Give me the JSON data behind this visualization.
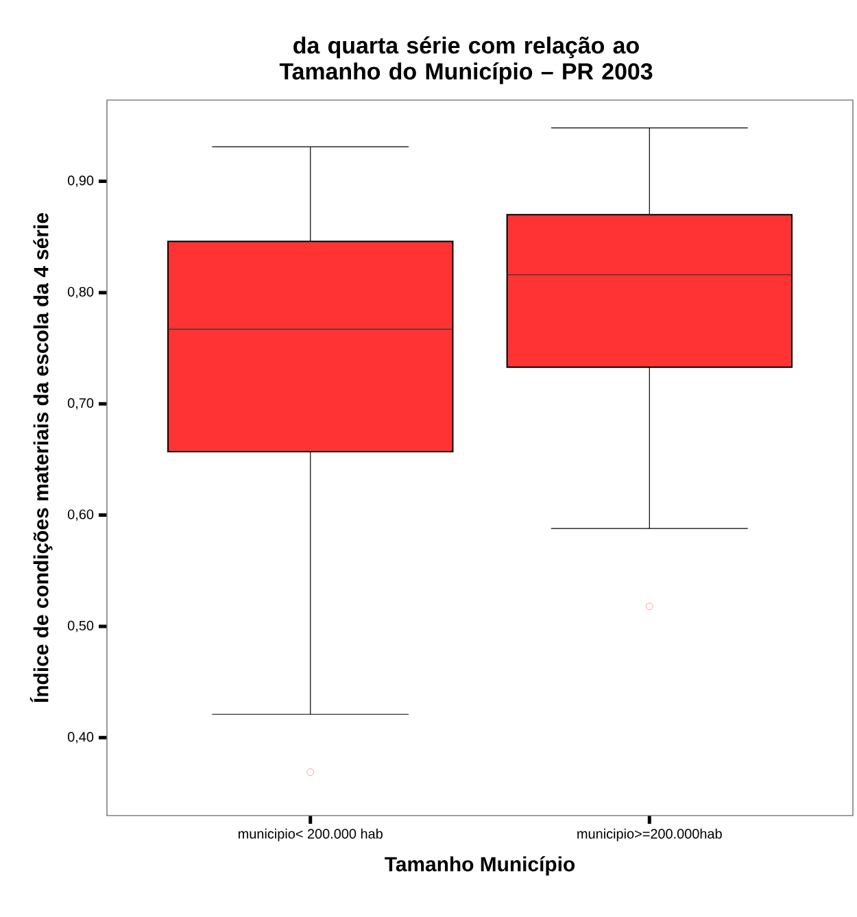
{
  "chart_data": {
    "type": "box",
    "title": "da quarta série com relação ao Tamanho do Município – PR 2003",
    "xlabel": "Tamanho Município",
    "ylabel": "Índice de condições materiais da escola da 4 série",
    "categories": [
      "municipio< 200.000 hab",
      "municipio>=200.000hab"
    ],
    "color": "#ff3333",
    "boxes": [
      {
        "low": 0.421,
        "q1": 0.657,
        "median": 0.767,
        "q3": 0.846,
        "high": 0.931,
        "outliers": [
          0.369
        ]
      },
      {
        "low": 0.588,
        "q1": 0.733,
        "median": 0.816,
        "q3": 0.87,
        "high": 0.948,
        "outliers": [
          0.518
        ]
      }
    ],
    "ylim": [
      0.33,
      0.973
    ],
    "yticks": [
      {
        "value": 0.4,
        "label": "0,40"
      },
      {
        "value": 0.5,
        "label": "0,50"
      },
      {
        "value": 0.6,
        "label": "0,60"
      },
      {
        "value": 0.7,
        "label": "0,70"
      },
      {
        "value": 0.8,
        "label": "0,80"
      },
      {
        "value": 0.9,
        "label": "0,90"
      }
    ],
    "grid": false
  }
}
